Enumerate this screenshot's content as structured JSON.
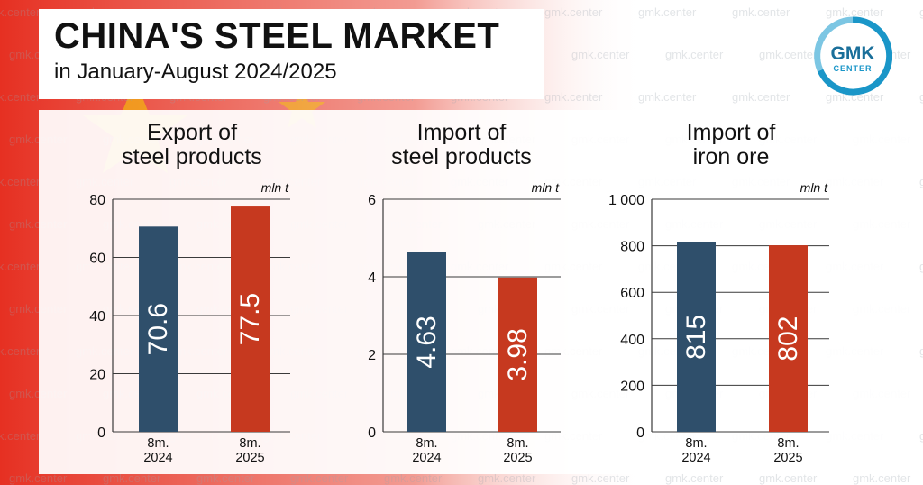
{
  "header": {
    "title": "CHINA'S STEEL MARKET",
    "subtitle": "in January-August 2024/2025"
  },
  "logo": {
    "line1": "GMK",
    "line2": "CENTER",
    "ring_color": "#1a96c8"
  },
  "watermark": "gmk.center",
  "colors": {
    "bar_2024": "#2f4f6b",
    "bar_2025": "#c6391f",
    "flag_red": "#e63022",
    "flag_star": "#f5d200"
  },
  "chart_data": [
    {
      "type": "bar",
      "title": [
        "Export of",
        "steel products"
      ],
      "unit": "mln t",
      "categories": [
        "8m.\n2024",
        "8m.\n2025"
      ],
      "values": [
        70.6,
        77.5
      ],
      "value_labels": [
        "70.6",
        "77.5"
      ],
      "ylim": [
        0,
        80
      ],
      "ticks": [
        0,
        20,
        40,
        60,
        80
      ],
      "tick_labels": [
        "0",
        "20",
        "40",
        "60",
        "80"
      ],
      "grid": true
    },
    {
      "type": "bar",
      "title": [
        "Import of",
        "steel products"
      ],
      "unit": "mln t",
      "categories": [
        "8m.\n2024",
        "8m.\n2025"
      ],
      "values": [
        4.63,
        3.98
      ],
      "value_labels": [
        "4.63",
        "3.98"
      ],
      "ylim": [
        0,
        6
      ],
      "ticks": [
        0,
        2,
        4,
        6
      ],
      "tick_labels": [
        "0",
        "2",
        "4",
        "6"
      ],
      "grid": true
    },
    {
      "type": "bar",
      "title": [
        "Import of",
        "iron ore"
      ],
      "unit": "mln t",
      "categories": [
        "8m.\n2024",
        "8m.\n2025"
      ],
      "values": [
        815,
        802
      ],
      "value_labels": [
        "815",
        "802"
      ],
      "ylim": [
        0,
        1000
      ],
      "ticks": [
        0,
        200,
        400,
        600,
        800,
        1000
      ],
      "tick_labels": [
        "0",
        "200",
        "400",
        "600",
        "800",
        "1 000"
      ],
      "grid": true
    }
  ]
}
